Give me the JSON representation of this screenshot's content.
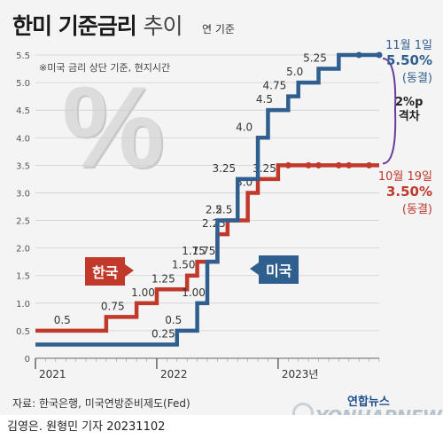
{
  "title": {
    "main": "한미 기준금리",
    "suffix": "추이"
  },
  "unit_note": "연 기준",
  "footnote": "※미국 금리 상단 기준, 현지시간",
  "callouts": {
    "korea": "한국",
    "us": "미국"
  },
  "annotations": {
    "us_date": "11월 1일",
    "us_value": "5.50%",
    "us_status": "(동결)",
    "kr_date": "10월 19일",
    "kr_value": "3.50%",
    "kr_status": "(동결)",
    "gap_value": "2%p",
    "gap_label": "격차"
  },
  "source": "자료: 한국은행, 미국연방준비제도(Fed)",
  "credit": "김영은. 원형민 기자  20231102",
  "logo": {
    "kr": "연합뉴스",
    "en": "YONHAPNEWS"
  },
  "decoration": "%",
  "colors": {
    "korea": "#c0392b",
    "us": "#2f5f8f",
    "background": "#f4f4f4"
  },
  "chart_data": {
    "type": "line",
    "step": true,
    "x_range": [
      "2021-01",
      "2023-11"
    ],
    "x_ticks": [
      "2021",
      "2022",
      "2023년"
    ],
    "ylim": [
      0,
      5.5
    ],
    "y_ticks": [
      "0",
      "0.5",
      "1.0",
      "1.5",
      "2.0",
      "2.5",
      "3.0",
      "3.5",
      "4.0",
      "4.5",
      "5.0",
      "5.5"
    ],
    "grid": true,
    "series": [
      {
        "name": "한국",
        "color": "#c0392b",
        "points": [
          {
            "x": "2021-01",
            "y": 0.5
          },
          {
            "x": "2021-08",
            "y": 0.75
          },
          {
            "x": "2021-11",
            "y": 1.0
          },
          {
            "x": "2022-01",
            "y": 1.25
          },
          {
            "x": "2022-04",
            "y": 1.5
          },
          {
            "x": "2022-05",
            "y": 1.75
          },
          {
            "x": "2022-07",
            "y": 2.25
          },
          {
            "x": "2022-08",
            "y": 2.5
          },
          {
            "x": "2022-10",
            "y": 3.0
          },
          {
            "x": "2022-11",
            "y": 3.25
          },
          {
            "x": "2023-01",
            "y": 3.5
          },
          {
            "x": "2023-11",
            "y": 3.5
          }
        ],
        "labels": [
          {
            "x": "2021-04",
            "y": 0.5,
            "text": "0.5"
          },
          {
            "x": "2021-09",
            "y": 0.75,
            "text": "0.75"
          },
          {
            "x": "2021-12",
            "y": 1.0,
            "text": "1.00"
          },
          {
            "x": "2022-02",
            "y": 1.25,
            "text": "1.25"
          },
          {
            "x": "2022-04",
            "y": 1.5,
            "text": "1.50"
          },
          {
            "x": "2022-05",
            "y": 1.75,
            "text": "1.75"
          },
          {
            "x": "2022-07",
            "y": 2.25,
            "text": "2.25"
          },
          {
            "x": "2022-08",
            "y": 2.5,
            "text": "2.5"
          },
          {
            "x": "2022-10",
            "y": 3.0,
            "text": "3.0"
          },
          {
            "x": "2022-12",
            "y": 3.25,
            "text": "3.25"
          }
        ],
        "hold_markers": [
          "2023-02",
          "2023-04",
          "2023-05",
          "2023-07",
          "2023-08",
          "2023-10"
        ]
      },
      {
        "name": "미국",
        "color": "#2f5f8f",
        "points": [
          {
            "x": "2021-01",
            "y": 0.25
          },
          {
            "x": "2022-03",
            "y": 0.5
          },
          {
            "x": "2022-05",
            "y": 1.0
          },
          {
            "x": "2022-06",
            "y": 1.75
          },
          {
            "x": "2022-07",
            "y": 2.5
          },
          {
            "x": "2022-09",
            "y": 3.25
          },
          {
            "x": "2022-11",
            "y": 4.0
          },
          {
            "x": "2022-12",
            "y": 4.5
          },
          {
            "x": "2023-02",
            "y": 4.75
          },
          {
            "x": "2023-03",
            "y": 5.0
          },
          {
            "x": "2023-05",
            "y": 5.25
          },
          {
            "x": "2023-07",
            "y": 5.5
          },
          {
            "x": "2023-11",
            "y": 5.5
          }
        ],
        "labels": [
          {
            "x": "2022-02",
            "y": 0.25,
            "text": "0.25"
          },
          {
            "x": "2022-03",
            "y": 0.5,
            "text": "0.5"
          },
          {
            "x": "2022-05",
            "y": 1.0,
            "text": "1.00"
          },
          {
            "x": "2022-06",
            "y": 1.75,
            "text": "1.75"
          },
          {
            "x": "2022-07",
            "y": 2.5,
            "text": "2.5"
          },
          {
            "x": "2022-08",
            "y": 3.25,
            "text": "3.25"
          },
          {
            "x": "2022-10",
            "y": 4.0,
            "text": "4.0"
          },
          {
            "x": "2022-12",
            "y": 4.5,
            "text": "4.5"
          },
          {
            "x": "2023-01",
            "y": 4.75,
            "text": "4.75"
          },
          {
            "x": "2023-03",
            "y": 5.0,
            "text": "5.0"
          },
          {
            "x": "2023-05",
            "y": 5.25,
            "text": "5.25"
          }
        ],
        "hold_markers": [
          "2023-09",
          "2023-11"
        ]
      }
    ]
  }
}
